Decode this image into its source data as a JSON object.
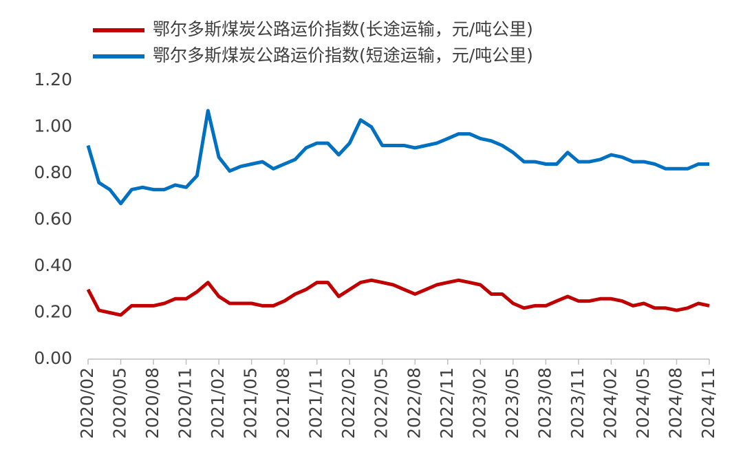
{
  "chart_data": {
    "type": "line",
    "categories": [
      "2020/02",
      null,
      null,
      "2020/05",
      null,
      null,
      "2020/08",
      null,
      null,
      "2020/11",
      null,
      null,
      "2021/02",
      null,
      null,
      "2021/05",
      null,
      null,
      "2021/08",
      null,
      null,
      "2021/11",
      null,
      null,
      "2022/02",
      null,
      null,
      "2022/05",
      null,
      null,
      "2022/08",
      null,
      null,
      "2022/11",
      null,
      null,
      "2023/02",
      null,
      null,
      "2023/05",
      null,
      null,
      "2023/08",
      null,
      null,
      "2023/11",
      null,
      null,
      "2024/02",
      null,
      null,
      "2024/05",
      null,
      null,
      "2024/08",
      null,
      null,
      "2024/11"
    ],
    "series": [
      {
        "name": "鄂尔多斯煤炭公路运价指数(长途运输，元/吨公里)",
        "color": "#c00000",
        "values": [
          0.3,
          0.21,
          0.2,
          0.19,
          0.23,
          0.23,
          0.23,
          0.24,
          0.26,
          0.26,
          0.29,
          0.33,
          0.27,
          0.24,
          0.24,
          0.24,
          0.23,
          0.23,
          0.25,
          0.28,
          0.3,
          0.33,
          0.33,
          0.27,
          0.3,
          0.33,
          0.34,
          0.33,
          0.32,
          0.3,
          0.28,
          0.3,
          0.32,
          0.33,
          0.34,
          0.33,
          0.32,
          0.28,
          0.28,
          0.24,
          0.22,
          0.23,
          0.23,
          0.25,
          0.27,
          0.25,
          0.25,
          0.26,
          0.26,
          0.25,
          0.23,
          0.24,
          0.22,
          0.22,
          0.21,
          0.22,
          0.24,
          0.23
        ]
      },
      {
        "name": "鄂尔多斯煤炭公路运价指数(短途运输，元/吨公里)",
        "color": "#0070c0",
        "values": [
          0.92,
          0.76,
          0.73,
          0.67,
          0.73,
          0.74,
          0.73,
          0.73,
          0.75,
          0.74,
          0.79,
          1.07,
          0.87,
          0.81,
          0.83,
          0.84,
          0.85,
          0.82,
          0.84,
          0.86,
          0.91,
          0.93,
          0.93,
          0.88,
          0.93,
          1.03,
          1.0,
          0.92,
          0.92,
          0.92,
          0.91,
          0.92,
          0.93,
          0.95,
          0.97,
          0.97,
          0.95,
          0.94,
          0.92,
          0.89,
          0.85,
          0.85,
          0.84,
          0.84,
          0.89,
          0.85,
          0.85,
          0.86,
          0.88,
          0.87,
          0.85,
          0.85,
          0.84,
          0.82,
          0.82,
          0.82,
          0.84,
          0.84
        ]
      }
    ],
    "ylim": [
      0,
      1.2
    ],
    "yticks": [
      {
        "value": 0,
        "label": "0.00"
      },
      {
        "value": 0.2,
        "label": "0.20"
      },
      {
        "value": 0.4,
        "label": "0.40"
      },
      {
        "value": 0.6,
        "label": "0.60"
      },
      {
        "value": 0.8,
        "label": "0.80"
      },
      {
        "value": 1,
        "label": "1.00"
      },
      {
        "value": 1.2,
        "label": "1.20"
      }
    ]
  }
}
